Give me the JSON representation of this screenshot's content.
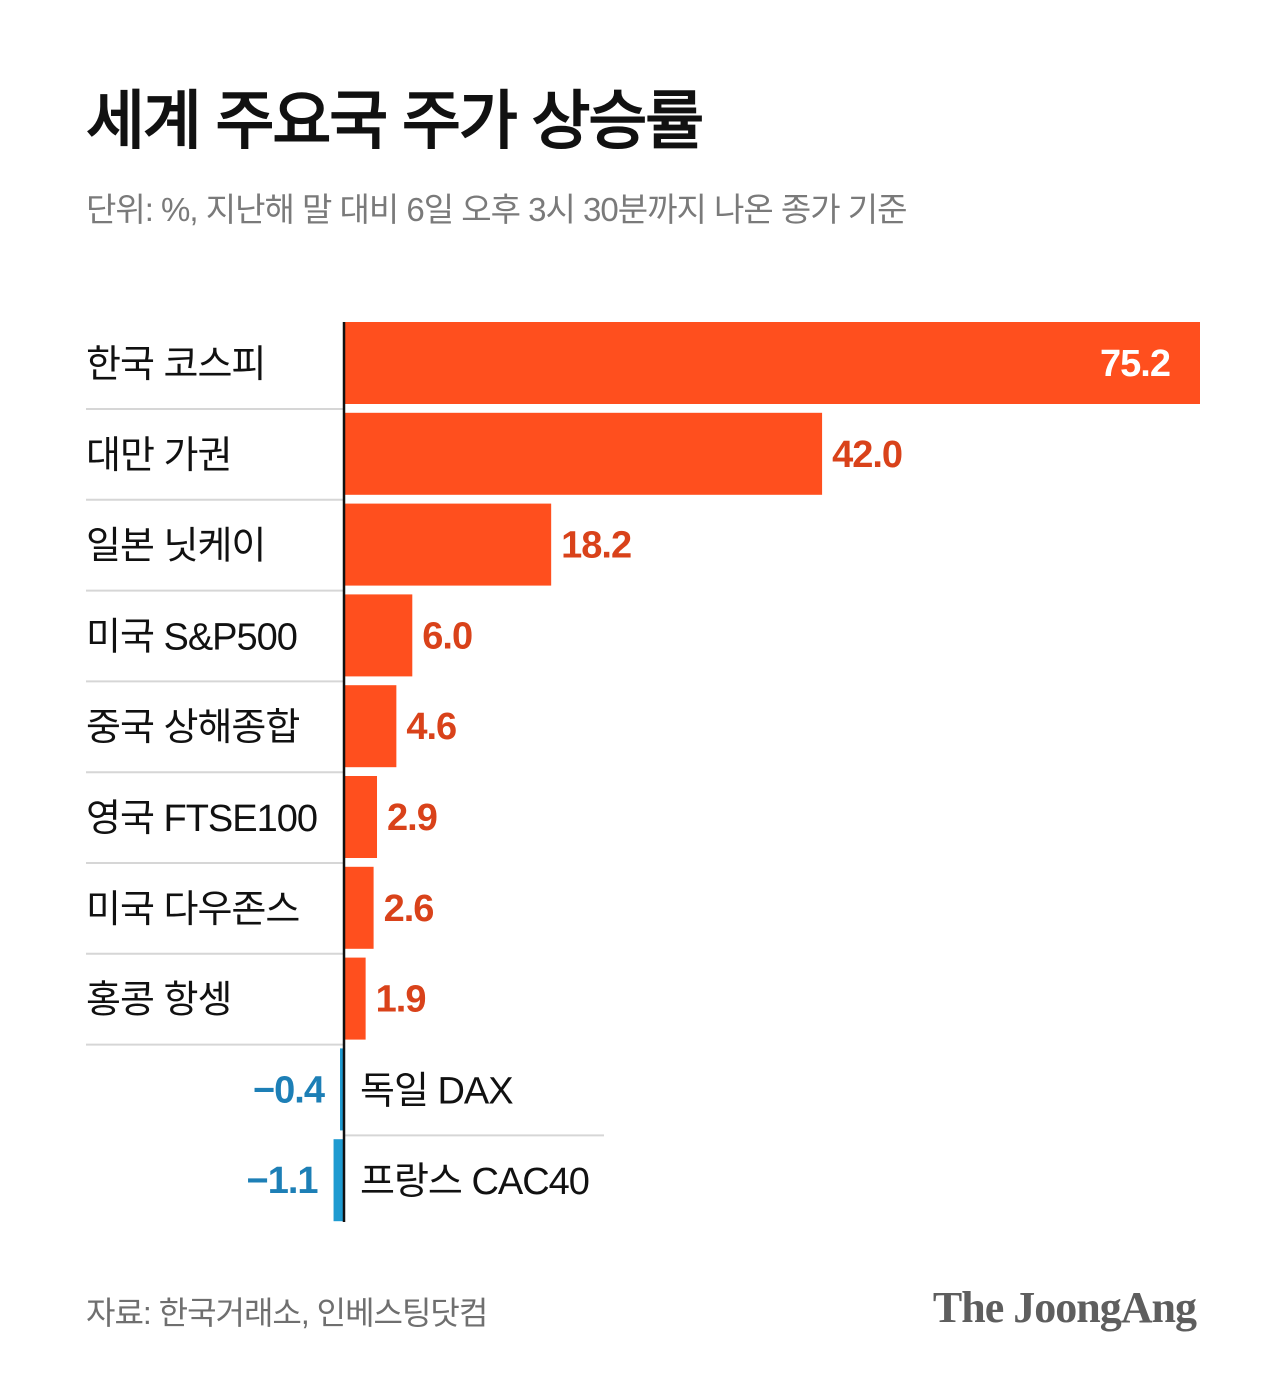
{
  "header": {
    "title": "세계 주요국 주가 상승률",
    "subtitle": "단위: %, 지난해 말 대비 6일 오후 3시 30분까지 나온 종가 기준"
  },
  "footer": {
    "source": "자료: 한국거래소, 인베스팅닷컴",
    "brand": "The JoongAng"
  },
  "colors": {
    "positive_bar": "#ff4f1e",
    "positive_label": "#d9421a",
    "negative_bar": "#1f9bd1",
    "negative_label": "#1d7fb6",
    "top_label": "#ffffff",
    "axis": "#111111",
    "separator": "#d6d6d6"
  },
  "chart_data": {
    "type": "bar",
    "orientation": "horizontal",
    "title": "세계 주요국 주가 상승률",
    "subtitle": "단위: %, 지난해 말 대비 6일 오후 3시 30분까지 나온 종가 기준",
    "categories": [
      "한국 코스피",
      "대만 가권",
      "일본 닛케이",
      "미국 S&P500",
      "중국 상해종합",
      "영국 FTSE100",
      "미국 다우존스",
      "홍콩 항셍",
      "독일 DAX",
      "프랑스 CAC40"
    ],
    "values": [
      75.2,
      42.0,
      18.2,
      6.0,
      4.6,
      2.9,
      2.6,
      1.9,
      -0.4,
      -1.1
    ],
    "value_labels": [
      "75.2",
      "42.0",
      "18.2",
      "6.0",
      "4.6",
      "2.9",
      "2.6",
      "1.9",
      "−0.4",
      "−1.1"
    ],
    "xlim": [
      0,
      75.2
    ],
    "grid": false,
    "legend": "none"
  }
}
